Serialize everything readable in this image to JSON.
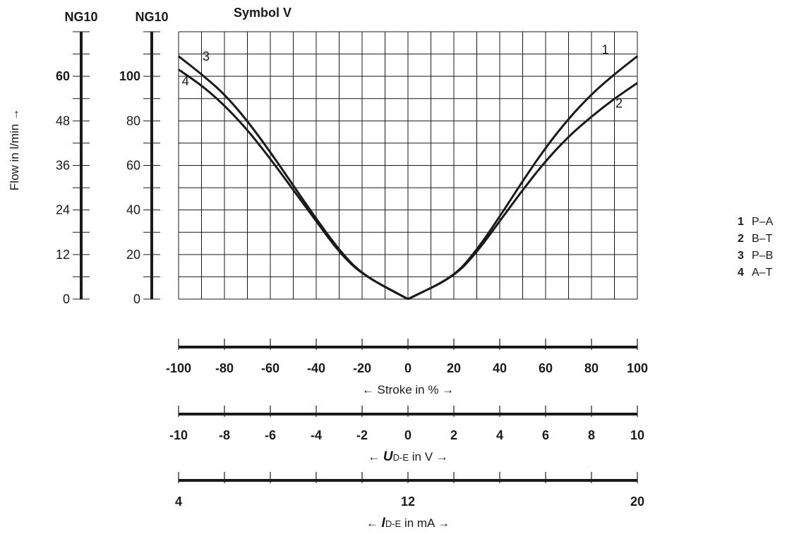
{
  "chart_data": {
    "type": "line",
    "title": "Symbol V",
    "ylabel": "Flow in l/min →",
    "y_scales": [
      {
        "heading": "NG10",
        "ticks": [
          0,
          12,
          24,
          36,
          48,
          60
        ],
        "max_label": 60
      },
      {
        "heading": "NG10",
        "ticks": [
          0,
          20,
          40,
          60,
          80,
          100
        ],
        "max_label": 100
      }
    ],
    "xlim": [
      -100,
      100
    ],
    "ylim": [
      0,
      120
    ],
    "grid": true,
    "x_axes": [
      {
        "title_pre": "← Stroke in % →",
        "title_sym": "",
        "title_sub": "",
        "title_post": "",
        "ticks": [
          -100,
          -80,
          -60,
          -40,
          -20,
          0,
          20,
          40,
          60,
          80,
          100
        ],
        "labels": [
          "-100",
          "-80",
          "-60",
          "-40",
          "-20",
          "0",
          "20",
          "40",
          "60",
          "80",
          "100"
        ]
      },
      {
        "title_pre": "← ",
        "title_sym": "U",
        "title_sub": "D-E",
        "title_post": " in V →",
        "ticks": [
          -100,
          -80,
          -60,
          -40,
          -20,
          0,
          20,
          40,
          60,
          80,
          100
        ],
        "labels": [
          "-10",
          "-8",
          "-6",
          "-4",
          "-2",
          "0",
          "2",
          "4",
          "6",
          "8",
          "10"
        ]
      },
      {
        "title_pre": "← ",
        "title_sym": "I",
        "title_sub": "D-E",
        "title_post": " in mA →",
        "ticks": [
          -100,
          -80,
          -60,
          -40,
          -20,
          0,
          20,
          40,
          60,
          80,
          100
        ],
        "labels": [
          "4",
          "",
          "",
          "",
          "",
          "12",
          "",
          "",
          "",
          "",
          "20"
        ]
      }
    ],
    "series": [
      {
        "name": "1",
        "label_at": [
          86,
          110
        ],
        "x": [
          0,
          20,
          30,
          40,
          50,
          60,
          70,
          80,
          90,
          100
        ],
        "y": [
          0,
          10,
          22,
          37,
          53,
          68,
          81,
          92,
          101,
          109
        ]
      },
      {
        "name": "2",
        "label_at": [
          92,
          86
        ],
        "x": [
          0,
          20,
          30,
          40,
          50,
          60,
          70,
          80,
          90,
          100
        ],
        "y": [
          0,
          10,
          21,
          35,
          49,
          62,
          73,
          82,
          90,
          97
        ]
      },
      {
        "name": "3",
        "label_at": [
          -88,
          107
        ],
        "x": [
          -100,
          -90,
          -80,
          -70,
          -60,
          -50,
          -40,
          -30,
          -20,
          0
        ],
        "y": [
          109,
          101,
          92,
          80,
          66,
          51,
          36,
          22,
          11,
          0
        ]
      },
      {
        "name": "4",
        "label_at": [
          -97,
          96
        ],
        "x": [
          -100,
          -90,
          -80,
          -70,
          -60,
          -50,
          -40,
          -30,
          -20,
          0
        ],
        "y": [
          103,
          96,
          87,
          76,
          63,
          49,
          35,
          21,
          11,
          0
        ]
      }
    ]
  },
  "legend": [
    {
      "num": "1",
      "label": "P–A"
    },
    {
      "num": "2",
      "label": "B–T"
    },
    {
      "num": "3",
      "label": "P–B"
    },
    {
      "num": "4",
      "label": "A–T"
    }
  ]
}
